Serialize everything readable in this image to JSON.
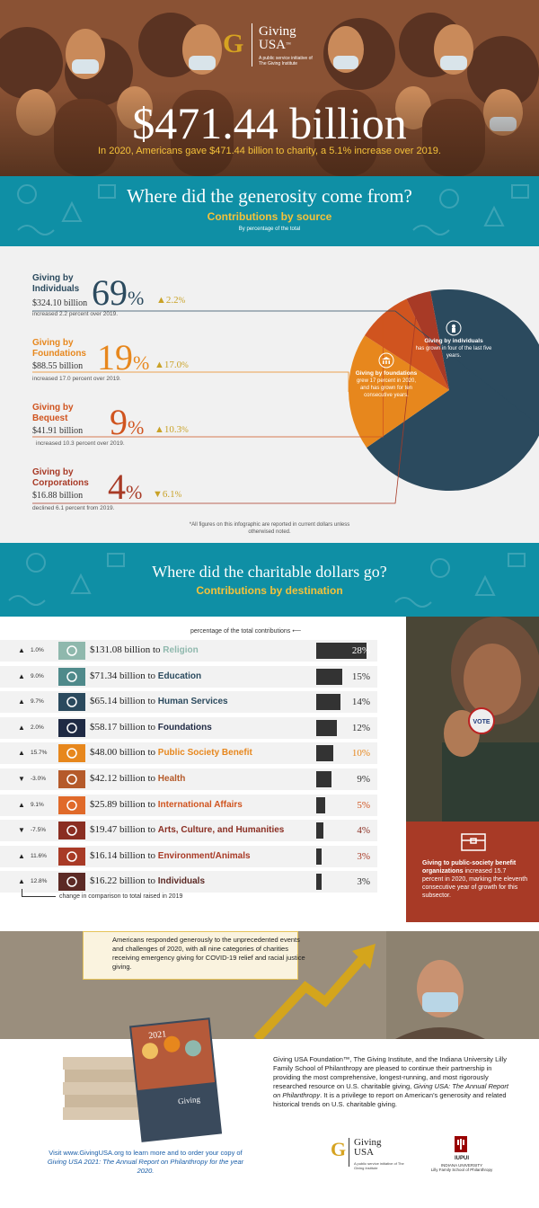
{
  "header": {
    "logo_letter": "G",
    "logo_name_1": "Giving",
    "logo_name_2": "USA",
    "logo_tm": "™",
    "logo_sub": "A public service initiative of The Giving Institute",
    "amount": "$471.44 billion",
    "tagline": "In 2020, Americans gave $471.44 billion to charity, a 5.1% increase over 2019."
  },
  "sources_banner": {
    "title": "Where did the generosity come from?",
    "subtitle": "Contributions by source",
    "note": "By percentage of the total"
  },
  "sources": [
    {
      "name": "Giving by Individuals",
      "amount": "$324.10 billion",
      "percent": "69",
      "change": "2.2",
      "direction": "up",
      "desc": "increased 2.2 percent over 2019.",
      "color": "#2b4a5e"
    },
    {
      "name": "Giving by Foundations",
      "amount": "$88.55 billion",
      "percent": "19",
      "change": "17.0",
      "direction": "up",
      "desc": "increased 17.0 percent over 2019.",
      "color": "#e7871d"
    },
    {
      "name": "Giving by Bequest",
      "amount": "$41.91 billion",
      "percent": "9",
      "change": "10.3",
      "direction": "up",
      "desc": "increased 10.3 percent over 2019.",
      "color": "#d0541f"
    },
    {
      "name": "Giving by Corporations",
      "amount": "$16.88 billion",
      "percent": "4",
      "change": "6.1",
      "direction": "down",
      "desc": "declined 6.1 percent from 2019.",
      "color": "#a83a26"
    }
  ],
  "pie_notes": {
    "individuals_title": "Giving by individuals",
    "individuals_text": "has grown in four of the last five years.",
    "foundations_title": "Giving by foundations",
    "foundations_text": "grew 17 percent in 2020, and has grown for ten consecutive years."
  },
  "footnote": "*All figures on this infographic are reported in current dollars unless otherwised noted.",
  "dest_banner": {
    "title": "Where did the charitable dollars go?",
    "subtitle": "Contributions by destination"
  },
  "dest_header": "percentage of the total contributions",
  "dest_footer": "change in comparison to total raised in 2019",
  "destinations": [
    {
      "change": "1.0%",
      "direction": "up",
      "amount": "$131.08 billion to",
      "category": "Religion",
      "percent": "28%",
      "value": 28,
      "cat_color": "#8fb8ad",
      "icon": "dove-icon",
      "icon_color": "#8fb8ad",
      "pct_color": "#ffffff",
      "bar_color": "#333333"
    },
    {
      "change": "9.0%",
      "direction": "up",
      "amount": "$71.34 billion to",
      "category": "Education",
      "percent": "15%",
      "value": 15,
      "cat_color": "#2b4a5e",
      "icon": "graduation-cap-icon",
      "icon_color": "#4f8a8b",
      "pct_color": "#333333",
      "bar_color": "#333333"
    },
    {
      "change": "9.7%",
      "direction": "up",
      "amount": "$65.14 billion to",
      "category": "Human Services",
      "percent": "14%",
      "value": 14,
      "cat_color": "#2b4a5e",
      "icon": "hands-icon",
      "icon_color": "#2b4a5e",
      "pct_color": "#333333",
      "bar_color": "#333333"
    },
    {
      "change": "2.0%",
      "direction": "up",
      "amount": "$58.17 billion to",
      "category": "Foundations",
      "percent": "12%",
      "value": 12,
      "cat_color": "#1f2a44",
      "icon": "building-icon",
      "icon_color": "#1f2a44",
      "pct_color": "#333333",
      "bar_color": "#333333"
    },
    {
      "change": "15.7%",
      "direction": "up",
      "amount": "$48.00 billion to",
      "category": "Public Society Benefit",
      "percent": "10%",
      "value": 10,
      "cat_color": "#e7871d",
      "icon": "chest-icon",
      "icon_color": "#e7871d",
      "pct_color": "#e7871d",
      "bar_color": "#333333"
    },
    {
      "change": "-3.0%",
      "direction": "down",
      "amount": "$42.12 billion to",
      "category": "Health",
      "percent": "9%",
      "value": 9,
      "cat_color": "#b55a2a",
      "icon": "medical-cross-icon",
      "icon_color": "#b55a2a",
      "pct_color": "#333333",
      "bar_color": "#333333"
    },
    {
      "change": "9.1%",
      "direction": "up",
      "amount": "$25.89 billion to",
      "category": "International Affairs",
      "percent": "5%",
      "value": 5,
      "cat_color": "#d0541f",
      "icon": "globe-icon",
      "icon_color": "#e06a2a",
      "pct_color": "#d0541f",
      "bar_color": "#333333"
    },
    {
      "change": "-7.5%",
      "direction": "down",
      "amount": "$19.47 billion to",
      "category": "Arts, Culture, and Humanities",
      "percent": "4%",
      "value": 4,
      "cat_color": "#8a2e22",
      "icon": "palette-icon",
      "icon_color": "#8a2e22",
      "pct_color": "#8a2e22",
      "bar_color": "#333333"
    },
    {
      "change": "11.6%",
      "direction": "up",
      "amount": "$16.14 billion to",
      "category": "Environment/Animals",
      "percent": "3%",
      "value": 3,
      "cat_color": "#a83a26",
      "icon": "leaf-icon",
      "icon_color": "#a83a26",
      "pct_color": "#a83a26",
      "bar_color": "#333333"
    },
    {
      "change": "12.8%",
      "direction": "up",
      "amount": "$16.22 billion to",
      "category": "Individuals",
      "percent": "3%",
      "value": 3,
      "cat_color": "#5c2a25",
      "icon": "people-icon",
      "icon_color": "#5c2a25",
      "pct_color": "#333333",
      "bar_color": "#333333"
    }
  ],
  "red_box": {
    "lead": "Giving to public-society benefit organizations",
    "text": " increased 15.7 percent in 2020, marking the eleventh consecutive year of growth for this subsector."
  },
  "photo_badge": "VOTE",
  "narrative": "Americans responded generously to the unprecedented events and challenges of 2020, with all nine categories of charities receiving emergency giving for COVID-19 relief and racial justice giving.",
  "bottom": {
    "partners": "Giving USA Foundation™, The Giving Institute, and the Indiana University Lilly Family School of Philanthropy are pleased to continue their partnership in providing the most comprehensive, longest-running, and most rigorously researched resource on U.S. charitable giving,",
    "report_title": "Giving USA: The Annual Report on Philanthropy",
    "partners_end": ". It is a privilege to report on American’s generosity and related historical trends on U.S. charitable giving.",
    "visit": "Visit www.GivingUSA.org to learn more and to order your copy of",
    "visit_title": "Giving USA 2021: The Annual Report on Philanthropy for the year 2020.",
    "book_year": "2021",
    "logo_name_1": "Giving",
    "logo_name_2": "USA",
    "logo_sub": "A public service initiative of The Giving Institute",
    "iu_name": "IUPUI",
    "iu_line1": "INDIANA UNIVERSITY",
    "iu_line2": "Lilly Family School of Philanthropy"
  },
  "colors": {
    "teal": "#0f8fa5",
    "gold": "#f5c23a",
    "navy": "#2b4a5e",
    "orange": "#e7871d",
    "burnt": "#d0541f",
    "red": "#a83a26"
  }
}
